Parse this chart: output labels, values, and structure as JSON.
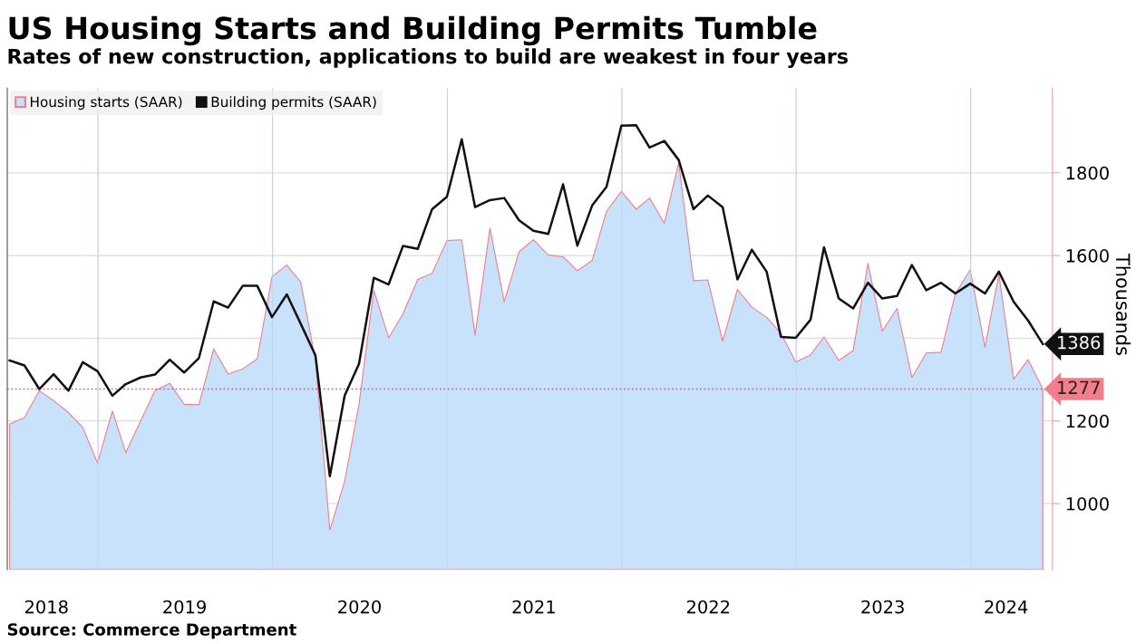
{
  "chart_data": {
    "type": "line",
    "title": "US Housing Starts and Building Permits Tumble",
    "subtitle": "Rates of new construction, applications to build are weakest in four years",
    "ylabel": "Thousands",
    "annotations": [
      "Source: Commerce Department"
    ],
    "x": [
      "2018-06-30",
      "2018-07-31",
      "2018-08-31",
      "2018-09-30",
      "2018-10-31",
      "2018-11-30",
      "2018-12-31",
      "2019-01-31",
      "2019-02-28",
      "2019-03-31",
      "2019-04-30",
      "2019-05-31",
      "2019-06-30",
      "2019-07-31",
      "2019-08-31",
      "2019-09-30",
      "2019-10-31",
      "2019-11-30",
      "2019-12-31",
      "2020-01-31",
      "2020-02-29",
      "2020-03-31",
      "2020-04-30",
      "2020-05-31",
      "2020-06-30",
      "2020-07-31",
      "2020-08-31",
      "2020-09-30",
      "2020-10-31",
      "2020-11-30",
      "2020-12-31",
      "2021-01-31",
      "2021-02-28",
      "2021-03-31",
      "2021-04-30",
      "2021-05-31",
      "2021-06-30",
      "2021-07-31",
      "2021-08-31",
      "2021-09-30",
      "2021-10-31",
      "2021-11-30",
      "2021-12-31",
      "2022-01-31",
      "2022-02-28",
      "2022-03-31",
      "2022-04-30",
      "2022-05-31",
      "2022-06-30",
      "2022-07-31",
      "2022-08-31",
      "2022-09-30",
      "2022-10-31",
      "2022-11-30",
      "2022-12-31",
      "2023-01-31",
      "2023-02-28",
      "2023-03-31",
      "2023-04-30",
      "2023-05-31",
      "2023-06-30",
      "2023-07-31",
      "2023-08-31",
      "2023-09-30",
      "2023-10-31",
      "2023-11-30",
      "2023-12-31",
      "2024-01-31",
      "2024-02-29",
      "2024-03-31",
      "2024-04-30",
      "2024-05-31"
    ],
    "series": [
      {
        "name": "Housing starts (SAAR)",
        "type": "area",
        "color": "#c9e2fb",
        "values": [
          1192,
          1208,
          1273,
          1249,
          1220,
          1184,
          1098,
          1224,
          1123,
          1200,
          1273,
          1291,
          1240,
          1239,
          1374,
          1313,
          1326,
          1350,
          1549,
          1577,
          1536,
          1346,
          936,
          1054,
          1240,
          1516,
          1401,
          1459,
          1542,
          1557,
          1636,
          1638,
          1407,
          1666,
          1488,
          1609,
          1638,
          1601,
          1597,
          1563,
          1588,
          1707,
          1755,
          1712,
          1739,
          1678,
          1824,
          1539,
          1541,
          1393,
          1518,
          1475,
          1451,
          1411,
          1342,
          1360,
          1403,
          1346,
          1370,
          1581,
          1417,
          1472,
          1305,
          1364,
          1366,
          1508,
          1565,
          1378,
          1555,
          1301,
          1348,
          1277
        ],
        "value_labels": [
          null,
          null,
          null,
          null,
          null,
          null,
          null,
          null,
          null,
          null,
          null,
          null,
          null,
          null,
          null,
          null,
          null,
          null,
          null,
          null,
          null,
          null,
          null,
          null,
          null,
          null,
          null,
          null,
          null,
          null,
          null,
          null,
          null,
          null,
          null,
          null,
          null,
          null,
          null,
          null,
          null,
          null,
          null,
          null,
          null,
          null,
          null,
          null,
          null,
          null,
          null,
          null,
          null,
          null,
          null,
          null,
          null,
          null,
          null,
          null,
          null,
          null,
          null,
          null,
          null,
          null,
          null,
          null,
          null,
          null,
          null,
          "1277"
        ]
      },
      {
        "name": "Building permits (SAAR)",
        "color": "#111111",
        "values": [
          1346,
          1334,
          1277,
          1313,
          1273,
          1342,
          1320,
          1261,
          1289,
          1305,
          1312,
          1348,
          1317,
          1352,
          1489,
          1474,
          1527,
          1527,
          1451,
          1506,
          1435,
          1358,
          1066,
          1261,
          1338,
          1546,
          1530,
          1623,
          1616,
          1712,
          1742,
          1881,
          1717,
          1734,
          1739,
          1685,
          1660,
          1652,
          1772,
          1624,
          1721,
          1766,
          1914,
          1915,
          1861,
          1877,
          1831,
          1712,
          1745,
          1717,
          1542,
          1614,
          1561,
          1403,
          1401,
          1445,
          1620,
          1496,
          1472,
          1534,
          1496,
          1502,
          1577,
          1516,
          1534,
          1508,
          1532,
          1508,
          1561,
          1488,
          1443,
          1386
        ],
        "value_labels": [
          null,
          null,
          null,
          null,
          null,
          null,
          null,
          null,
          null,
          null,
          null,
          null,
          null,
          null,
          null,
          null,
          null,
          null,
          null,
          null,
          null,
          null,
          null,
          null,
          null,
          null,
          null,
          null,
          null,
          null,
          null,
          null,
          null,
          null,
          null,
          null,
          null,
          null,
          null,
          null,
          null,
          null,
          null,
          null,
          null,
          null,
          null,
          null,
          null,
          null,
          null,
          null,
          null,
          null,
          null,
          null,
          null,
          null,
          null,
          null,
          null,
          null,
          null,
          null,
          null,
          null,
          null,
          null,
          null,
          null,
          null,
          "1386"
        ]
      }
    ],
    "xlim": [
      "2018-06-25",
      "2024-06-20"
    ],
    "xticks": [
      {
        "value": "2018-09-15",
        "label": "2018"
      },
      {
        "value": "2019-01-01",
        "label": null
      },
      {
        "value": "2019-07-01",
        "label": "2019"
      },
      {
        "value": "2020-01-01",
        "label": null
      },
      {
        "value": "2020-07-01",
        "label": "2020"
      },
      {
        "value": "2021-01-01",
        "label": null
      },
      {
        "value": "2021-07-01",
        "label": "2021"
      },
      {
        "value": "2022-01-01",
        "label": null
      },
      {
        "value": "2022-07-01",
        "label": "2022"
      },
      {
        "value": "2023-01-01",
        "label": null
      },
      {
        "value": "2023-07-01",
        "label": "2023"
      },
      {
        "value": "2024-01-01",
        "label": null
      },
      {
        "value": "2024-03-15",
        "label": "2024"
      }
    ],
    "ylim": [
      840,
      2005
    ],
    "yticks": [
      1000,
      1200,
      {
        "value": 1400,
        "label": null
      },
      1600,
      1800
    ],
    "ref_lines": [
      {
        "axis": "y",
        "value": 1277,
        "color": "#e05070",
        "line_style": "dotted"
      }
    ],
    "grid": true,
    "legend": "top left"
  }
}
